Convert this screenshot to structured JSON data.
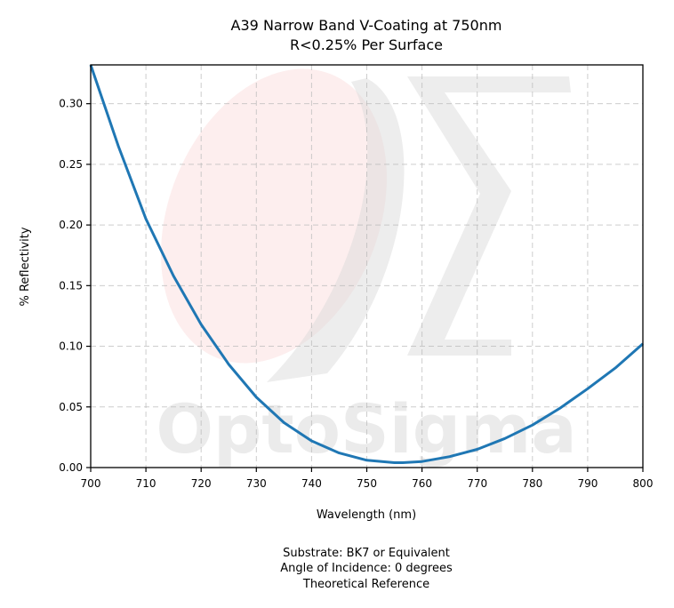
{
  "chart_data": {
    "type": "line",
    "title": [
      "A39 Narrow Band V-Coating at 750nm",
      "R<0.25% Per Surface"
    ],
    "xlabel": "Wavelength (nm)",
    "ylabel": "% Reflectivity",
    "xlim": [
      700,
      800
    ],
    "ylim": [
      0,
      0.332
    ],
    "x_ticks": [
      700,
      710,
      720,
      730,
      740,
      750,
      760,
      770,
      780,
      790,
      800
    ],
    "y_ticks": [
      "0.00",
      "0.05",
      "0.10",
      "0.15",
      "0.20",
      "0.25",
      "0.30"
    ],
    "grid": true,
    "grid_style": "dashed",
    "watermark": "OptoSigma",
    "series": [
      {
        "color": "#1f77b4",
        "x": [
          700,
          705,
          710,
          715,
          720,
          725,
          730,
          735,
          740,
          745,
          750,
          755,
          756.5,
          760,
          765,
          770,
          775,
          780,
          785,
          790,
          795,
          800
        ],
        "y": [
          0.332,
          0.265,
          0.205,
          0.158,
          0.118,
          0.085,
          0.058,
          0.037,
          0.022,
          0.012,
          0.006,
          0.004,
          0.004,
          0.005,
          0.009,
          0.015,
          0.024,
          0.035,
          0.049,
          0.065,
          0.082,
          0.102
        ]
      }
    ],
    "footnotes": [
      "Substrate: BK7 or Equivalent",
      "Angle of Incidence: 0 degrees",
      "Theoretical Reference"
    ]
  }
}
